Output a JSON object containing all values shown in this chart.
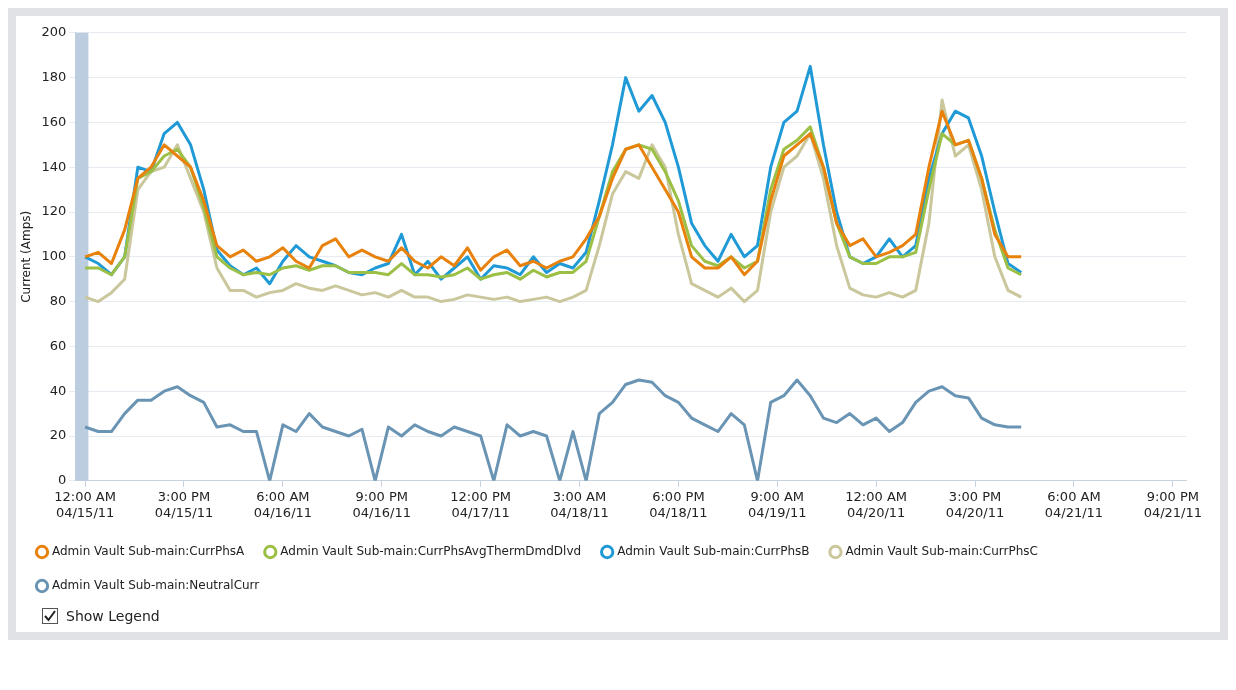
{
  "chart_data": {
    "type": "line",
    "ylabel": "Current (Amps)",
    "annotations": [
      "Show Legend"
    ],
    "x": [
      "--04-15T00:00",
      "--04-15T02:00",
      "--04-15T04:00",
      "--04-15T06:00",
      "--04-15T08:00",
      "--04-15T10:00",
      "--04-15T12:00",
      "--04-15T14:00",
      "--04-15T16:00",
      "--04-15T18:00",
      "--04-15T20:00",
      "--04-15T22:00",
      "--04-16T00:00",
      "--04-16T02:00",
      "--04-16T04:00",
      "--04-16T06:00",
      "--04-16T08:00",
      "--04-16T10:00",
      "--04-16T12:00",
      "--04-16T14:00",
      "--04-16T16:00",
      "--04-16T18:00",
      "--04-16T20:00",
      "--04-16T22:00",
      "--04-17T00:00",
      "--04-17T02:00",
      "--04-17T04:00",
      "--04-17T06:00",
      "--04-17T08:00",
      "--04-17T10:00",
      "--04-17T12:00",
      "--04-17T14:00",
      "--04-17T16:00",
      "--04-17T18:00",
      "--04-17T20:00",
      "--04-17T22:00",
      "--04-18T00:00",
      "--04-18T02:00",
      "--04-18T04:00",
      "--04-18T06:00",
      "--04-18T08:00",
      "--04-18T10:00",
      "--04-18T12:00",
      "--04-18T14:00",
      "--04-18T16:00",
      "--04-18T18:00",
      "--04-18T20:00",
      "--04-18T22:00",
      "--04-19T00:00",
      "--04-19T02:00",
      "--04-19T04:00",
      "--04-19T06:00",
      "--04-19T08:00",
      "--04-19T10:00",
      "--04-19T12:00",
      "--04-19T14:00",
      "--04-19T16:00",
      "--04-19T18:00",
      "--04-19T20:00",
      "--04-19T22:00",
      "--04-20T00:00",
      "--04-20T02:00",
      "--04-20T04:00",
      "--04-20T06:00",
      "--04-20T08:00",
      "--04-20T10:00",
      "--04-20T12:00",
      "--04-20T14:00",
      "--04-20T16:00",
      "--04-20T18:00",
      "--04-20T20:00",
      "--04-20T22:00"
    ],
    "series": [
      {
        "name": "Admin Vault Sub-main:CurrPhsA",
        "color": "#e8820c",
        "values": [
          100,
          102,
          97,
          112,
          135,
          140,
          150,
          145,
          140,
          125,
          105,
          100,
          103,
          98,
          100,
          104,
          98,
          95,
          105,
          108,
          100,
          103,
          100,
          98,
          104,
          98,
          95,
          100,
          96,
          104,
          94,
          100,
          103,
          96,
          98,
          95,
          98,
          100,
          108,
          118,
          135,
          148,
          150,
          140,
          130,
          120,
          100,
          95,
          95,
          100,
          92,
          98,
          125,
          145,
          150,
          155,
          140,
          115,
          105,
          108,
          100,
          102,
          105,
          110,
          140,
          165,
          150,
          152,
          135,
          110,
          100,
          100
        ]
      },
      {
        "name": "Admin Vault Sub-main:CurrPhsAvgThermDmdDlvd",
        "color": "#9cbf45",
        "values": [
          95,
          95,
          92,
          100,
          135,
          138,
          145,
          148,
          140,
          122,
          100,
          95,
          92,
          93,
          92,
          95,
          96,
          94,
          96,
          96,
          93,
          93,
          93,
          92,
          97,
          92,
          92,
          91,
          92,
          95,
          90,
          92,
          93,
          90,
          94,
          91,
          93,
          93,
          98,
          118,
          138,
          148,
          150,
          148,
          138,
          125,
          105,
          98,
          96,
          100,
          95,
          98,
          130,
          148,
          152,
          158,
          140,
          115,
          100,
          97,
          97,
          100,
          100,
          102,
          130,
          155,
          150,
          152,
          135,
          112,
          95,
          92
        ]
      },
      {
        "name": "Admin Vault Sub-main:CurrPhsB",
        "color": "#1f9ad6",
        "values": [
          100,
          97,
          92,
          100,
          140,
          138,
          155,
          160,
          150,
          130,
          103,
          96,
          92,
          95,
          88,
          98,
          105,
          100,
          98,
          96,
          93,
          92,
          95,
          97,
          110,
          92,
          98,
          90,
          95,
          100,
          90,
          96,
          95,
          92,
          100,
          93,
          97,
          95,
          102,
          125,
          150,
          180,
          165,
          172,
          160,
          140,
          115,
          105,
          98,
          110,
          100,
          105,
          140,
          160,
          165,
          185,
          150,
          120,
          100,
          97,
          100,
          108,
          100,
          105,
          135,
          155,
          165,
          162,
          145,
          120,
          97,
          93
        ]
      },
      {
        "name": "Admin Vault Sub-main:CurrPhsC",
        "color": "#c9c79b",
        "values": [
          82,
          80,
          84,
          90,
          130,
          138,
          140,
          150,
          135,
          120,
          95,
          85,
          85,
          82,
          84,
          85,
          88,
          86,
          85,
          87,
          85,
          83,
          84,
          82,
          85,
          82,
          82,
          80,
          81,
          83,
          82,
          81,
          82,
          80,
          81,
          82,
          80,
          82,
          85,
          105,
          128,
          138,
          135,
          150,
          140,
          110,
          88,
          85,
          82,
          86,
          80,
          85,
          120,
          140,
          145,
          155,
          135,
          105,
          86,
          83,
          82,
          84,
          82,
          85,
          115,
          170,
          145,
          150,
          130,
          100,
          85,
          82
        ]
      },
      {
        "name": "Admin Vault Sub-main:NeutralCurr",
        "color": "#6a94b4",
        "values": [
          24,
          22,
          22,
          30,
          36,
          36,
          40,
          42,
          38,
          35,
          24,
          25,
          22,
          22,
          0,
          25,
          22,
          30,
          24,
          22,
          20,
          23,
          0,
          24,
          20,
          25,
          22,
          20,
          24,
          22,
          20,
          0,
          25,
          20,
          22,
          20,
          0,
          22,
          0,
          30,
          35,
          43,
          45,
          44,
          38,
          35,
          28,
          25,
          22,
          30,
          25,
          0,
          35,
          38,
          45,
          38,
          28,
          26,
          30,
          25,
          28,
          22,
          26,
          35,
          40,
          42,
          38,
          37,
          28,
          25,
          24,
          24
        ]
      }
    ],
    "xlim": [
      "--04-14T22:30",
      "--04-21T23:00"
    ],
    "xticks": [
      {
        "value": "--04-15T00:00",
        "label": "12:00 AM 04/15/11"
      },
      {
        "value": "--04-15T15:00",
        "label": "3:00 PM 04/15/11"
      },
      {
        "value": "--04-16T06:00",
        "label": "6:00 AM 04/16/11"
      },
      {
        "value": "--04-16T21:00",
        "label": "9:00 PM 04/16/11"
      },
      {
        "value": "--04-17T12:00",
        "label": "12:00 PM 04/17/11"
      },
      {
        "value": "--04-18T03:00",
        "label": "3:00 AM 04/18/11"
      },
      {
        "value": "--04-18T18:00",
        "label": "6:00 PM 04/18/11"
      },
      {
        "value": "--04-19T09:00",
        "label": "9:00 AM 04/19/11"
      },
      {
        "value": "--04-20T00:00",
        "label": "12:00 AM 04/20/11"
      },
      {
        "value": "--04-20T15:00",
        "label": "3:00 PM 04/20/11"
      },
      {
        "value": "--04-21T06:00",
        "label": "6:00 AM 04/21/11"
      },
      {
        "value": "--04-21T21:00",
        "label": "9:00 PM 04/21/11"
      }
    ],
    "ylim": [
      0,
      200
    ],
    "yticks": [
      0,
      20,
      40,
      60,
      80,
      100,
      120,
      140,
      160,
      180,
      200
    ],
    "bands": [
      {
        "axis": "x",
        "from": "--04-14T22:30",
        "to": "--04-15T00:30",
        "color": "#bccddf"
      }
    ],
    "grid": "y",
    "legend": "bottom",
    "marker": "none",
    "line_style": "solid"
  }
}
